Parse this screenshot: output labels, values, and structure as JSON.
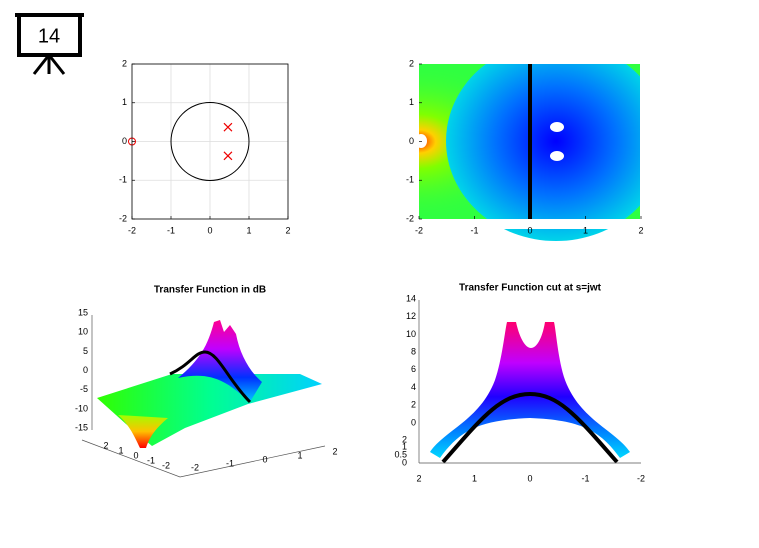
{
  "slide": {
    "number": "14"
  },
  "panels": [
    {
      "xlim": [
        -2,
        2
      ],
      "ylim": [
        -2,
        2
      ],
      "xticks": [
        -2,
        -1,
        0,
        1,
        2
      ],
      "yticks": [
        -2,
        -1,
        0,
        1,
        2
      ],
      "zeros": [
        {
          "x": -2,
          "y": 0
        }
      ],
      "poles": [
        {
          "x": 0.46,
          "y": 0.37
        },
        {
          "x": 0.46,
          "y": -0.37
        }
      ]
    },
    {
      "xlim": [
        -2,
        2
      ],
      "ylim": [
        -2,
        2
      ],
      "xticks": [
        -2,
        -1,
        0,
        1,
        2
      ],
      "yticks": [
        -2,
        -1,
        0,
        1,
        2
      ]
    },
    {
      "title": "Transfer Function in dB",
      "zticks": [
        15,
        10,
        5,
        0,
        -5,
        -10,
        -15
      ],
      "yticks": [
        2,
        1,
        0,
        -1,
        -2
      ],
      "xticks": [
        -2,
        -1,
        0,
        1,
        2
      ]
    },
    {
      "title": "Transfer Function cut at s=jwt",
      "yticks": [
        14,
        12,
        10,
        8,
        6,
        4,
        2,
        0
      ],
      "yticks_lower": [
        2,
        1,
        0.5,
        0
      ],
      "xticks": [
        2,
        1,
        0,
        -1,
        -2
      ]
    }
  ]
}
